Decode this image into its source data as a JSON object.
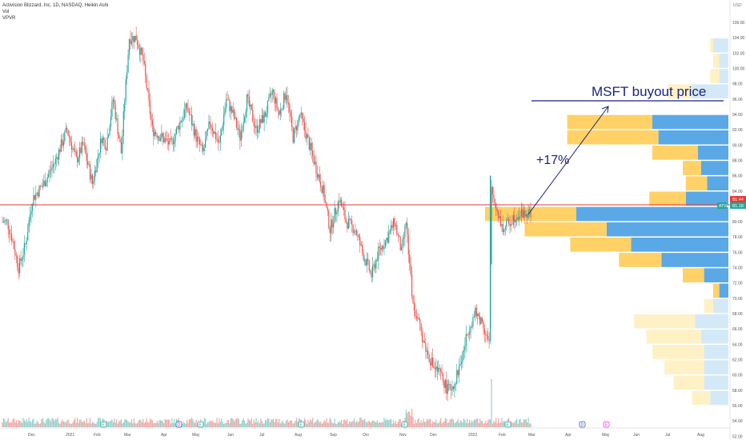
{
  "legend": {
    "title": "Activision Blizzard, Inc, 1D, NASDAQ, Heikin Ashi",
    "vol_label": "Vol",
    "vpvr_label": "VPVR"
  },
  "price_axis": {
    "currency": "USD",
    "ticks": [
      "106.00",
      "104.00",
      "102.00",
      "100.00",
      "98.00",
      "96.00",
      "94.00",
      "92.00",
      "90.00",
      "88.00",
      "86.00",
      "84.00",
      "82.00",
      "80.00",
      "78.00",
      "76.00",
      "74.00",
      "72.00",
      "70.00",
      "68.00",
      "66.00",
      "64.00",
      "62.00",
      "60.00",
      "58.00",
      "56.00",
      "54.00",
      "52.00"
    ],
    "last_price": "81.44",
    "atvi_label": "ATVI",
    "atvi_price": "81.18"
  },
  "time_axis": {
    "labels": [
      "Dec",
      "2021",
      "Feb",
      "Mar",
      "Apr",
      "May",
      "Jun",
      "Jul",
      "Aug",
      "Sep",
      "Oct",
      "Nov",
      "Dec",
      "2022",
      "Feb",
      "Mar",
      "Apr",
      "May",
      "Jun",
      "Jul",
      "Aug"
    ]
  },
  "annotations": {
    "buyout_text": "MSFT buyout price",
    "pct_text": "+17%",
    "buyout_price": 95.0,
    "horizontal_line_price": 81.44
  },
  "colors": {
    "up": "#26a69a",
    "down": "#ef5350",
    "annotation": "#1a237e",
    "hline": "#e53935",
    "vp_up": "#ffd166",
    "vp_down": "#5aa9e6",
    "vp_up_faded": "#fff1c6",
    "vp_down_faded": "#d4e9f7"
  },
  "chart_data": {
    "type": "candlestick",
    "ylim": [
      52,
      107
    ],
    "series": [
      {
        "name": "ATVI",
        "points": [
          {
            "x": "Dec 2020",
            "y": 80
          },
          {
            "x": "Jan 2021",
            "y": 88
          },
          {
            "x": "Feb 2021",
            "y": 103
          },
          {
            "x": "Feb 2021",
            "y": 101
          },
          {
            "x": "Mar 2021",
            "y": 92
          },
          {
            "x": "Apr 2021",
            "y": 95
          },
          {
            "x": "May 2021",
            "y": 93
          },
          {
            "x": "Jun 2021",
            "y": 97
          },
          {
            "x": "Jul 2021",
            "y": 92
          },
          {
            "x": "Aug 2021",
            "y": 83
          },
          {
            "x": "Sep 2021",
            "y": 79
          },
          {
            "x": "Oct 2021",
            "y": 79
          },
          {
            "x": "Nov 2021",
            "y": 67
          },
          {
            "x": "Dec 2021",
            "y": 58
          },
          {
            "x": "Jan 2022",
            "y": 66
          },
          {
            "x": "Jan 2022",
            "y": 81
          },
          {
            "x": "Feb 2022",
            "y": 81
          }
        ]
      }
    ],
    "volume_profile": [
      {
        "price": 103,
        "up": 1,
        "down": 5
      },
      {
        "price": 101,
        "up": 2,
        "down": 3
      },
      {
        "price": 99,
        "up": 3,
        "down": 3
      },
      {
        "price": 97,
        "up": 8,
        "down": 12
      },
      {
        "price": 93,
        "up": 28,
        "down": 25
      },
      {
        "price": 91,
        "up": 30,
        "down": 23
      },
      {
        "price": 89,
        "up": 15,
        "down": 10
      },
      {
        "price": 87,
        "up": 6,
        "down": 9
      },
      {
        "price": 85,
        "up": 7,
        "down": 7
      },
      {
        "price": 83,
        "up": 12,
        "down": 14
      },
      {
        "price": 81,
        "up": 30,
        "down": 50
      },
      {
        "price": 79,
        "up": 27,
        "down": 40
      },
      {
        "price": 77,
        "up": 20,
        "down": 32
      },
      {
        "price": 75,
        "up": 14,
        "down": 22
      },
      {
        "price": 73,
        "up": 7,
        "down": 8
      },
      {
        "price": 71,
        "up": 2,
        "down": 3
      },
      {
        "price": 69,
        "up": 3,
        "down": 5
      },
      {
        "price": 67,
        "up": 20,
        "down": 11
      },
      {
        "price": 65,
        "up": 18,
        "down": 9
      },
      {
        "price": 63,
        "up": 17,
        "down": 8
      },
      {
        "price": 61,
        "up": 13,
        "down": 8
      },
      {
        "price": 59,
        "up": 10,
        "down": 8
      },
      {
        "price": 57,
        "up": 6,
        "down": 6
      }
    ]
  }
}
